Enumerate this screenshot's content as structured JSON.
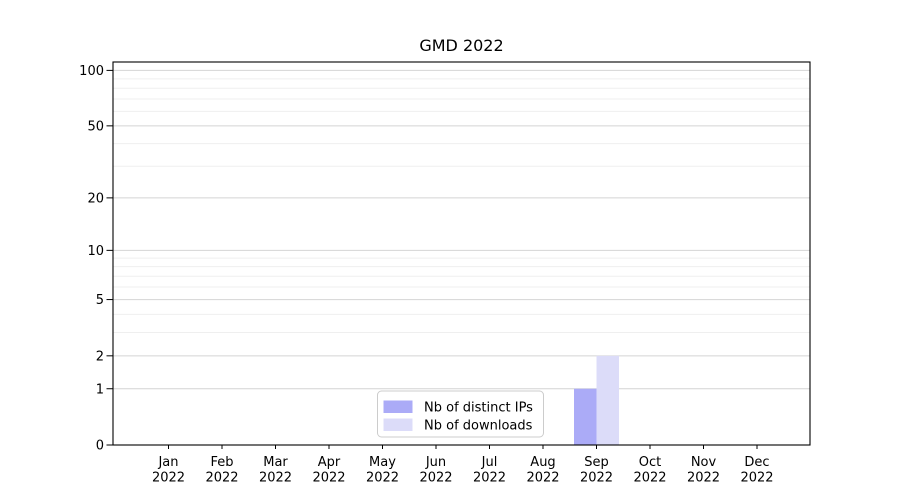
{
  "figure": {
    "background": "#ffffff"
  },
  "chart_data": {
    "type": "bar",
    "title": "GMD 2022",
    "categories": [
      "Jan 2022",
      "Feb 2022",
      "Mar 2022",
      "Apr 2022",
      "May 2022",
      "Jun 2022",
      "Jul 2022",
      "Aug 2022",
      "Sep 2022",
      "Oct 2022",
      "Nov 2022",
      "Dec 2022"
    ],
    "x_tick_line1": [
      "Jan",
      "Feb",
      "Mar",
      "Apr",
      "May",
      "Jun",
      "Jul",
      "Aug",
      "Sep",
      "Oct",
      "Nov",
      "Dec"
    ],
    "x_tick_line2": [
      "2022",
      "2022",
      "2022",
      "2022",
      "2022",
      "2022",
      "2022",
      "2022",
      "2022",
      "2022",
      "2022",
      "2022"
    ],
    "series": [
      {
        "name": "Nb of distinct IPs",
        "color": "#ababf7",
        "values": [
          0,
          0,
          0,
          0,
          0,
          0,
          0,
          0,
          1,
          0,
          0,
          0
        ]
      },
      {
        "name": "Nb of downloads",
        "color": "#dcdcf9",
        "values": [
          0,
          0,
          0,
          0,
          0,
          0,
          0,
          0,
          2,
          0,
          0,
          0
        ]
      }
    ],
    "yscale": "log1p",
    "ylim": [
      0,
      111
    ],
    "y_major_ticks": [
      0,
      1,
      2,
      5,
      10,
      20,
      50,
      100
    ],
    "y_minor_ticks": [
      3,
      4,
      6,
      7,
      8,
      9,
      30,
      40,
      60,
      70,
      80,
      90
    ],
    "grid": {
      "axis": "y",
      "major_color": "#d4d4d4",
      "minor_color": "#efefef"
    },
    "legend": {
      "position": "lower center inside"
    },
    "axis_color": "#000000",
    "text_color": "#000000"
  }
}
